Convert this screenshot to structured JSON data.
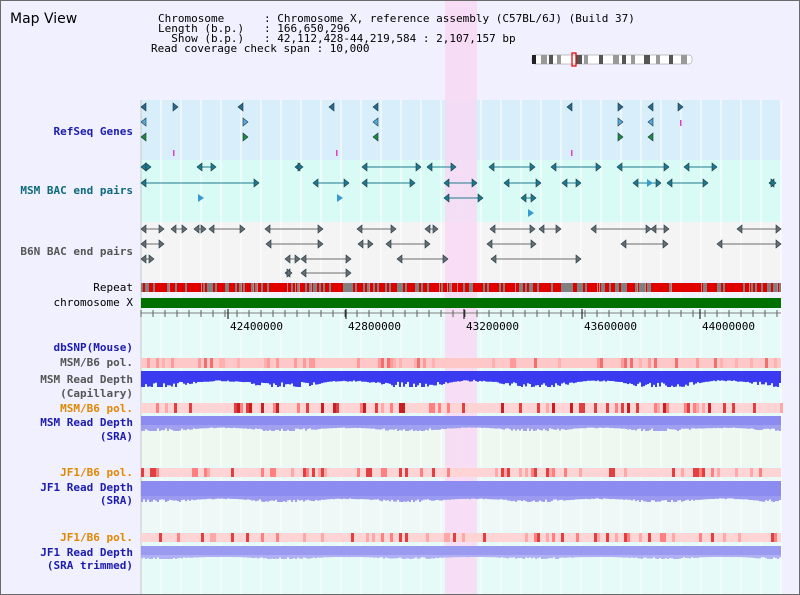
{
  "header": {
    "title": "Map View",
    "lines": [
      "Chromosome      : Chromosome X, reference assembly (C57BL/6J) (Build 37)",
      "Length (b.p.)   : 166,650,296",
      "  Show (b.p.)   : 42,112,428-44,219,584 : 2,107,157 bp",
      "Read coverage check span : 10,000"
    ]
  },
  "tracks": {
    "refseq": "RefSeq Genes",
    "msm_bac": "MSM BAC end pairs",
    "b6n_bac": "B6N BAC end pairs",
    "repeat": "Repeat",
    "chromosome": "chromosome X",
    "dbsnp": "dbSNP(Mouse)",
    "msm_b6_pol_1": "MSM/B6 pol.",
    "msm_depth_cap_1": "MSM Read Depth",
    "msm_depth_cap_2": "(Capillary)",
    "msm_b6_pol_2": "MSM/B6 pol.",
    "msm_depth_sra_1": "MSM Read Depth",
    "msm_depth_sra_2": "(SRA)",
    "jf1_b6_pol_1": "JF1/B6 pol.",
    "jf1_depth_sra_1": "JF1 Read Depth",
    "jf1_depth_sra_2": "(SRA)",
    "jf1_b6_pol_2": "JF1/B6 pol.",
    "jf1_depth_trim_1": "JF1 Read Depth",
    "jf1_depth_trim_2": "(SRA trimmed)"
  },
  "axis": {
    "ticks": [
      "42400000",
      "42800000",
      "43200000",
      "43600000",
      "44000000"
    ]
  },
  "colors": {
    "refseq_bg": "#d8eefa",
    "bac_bg": "#d9fbf5",
    "b6n_bg": "#f4f4f4",
    "highlight": "#f8d8f4",
    "chromosome": "#007000",
    "depth_blue": "#3a3af0",
    "depth_sra": "#8c8cf0",
    "label_blue": "#1c1cb0",
    "label_orange": "#e08800",
    "label_teal": "#0c6a7a"
  }
}
